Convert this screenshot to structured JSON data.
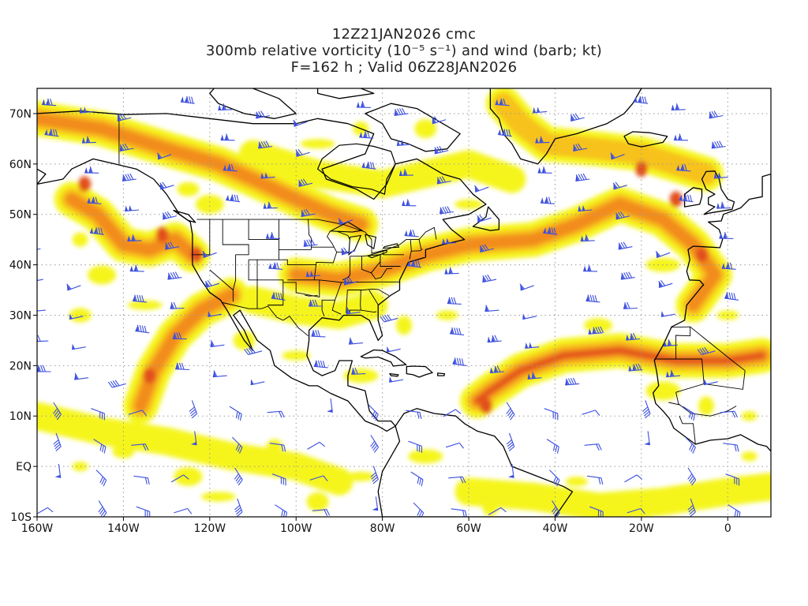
{
  "title": {
    "line1": "12Z21JAN2026 cmc",
    "line2": "300mb relative vorticity (10⁻⁵ s⁻¹) and wind (barb; kt)",
    "line3": "F=162 h ; Valid 06Z28JAN2026"
  },
  "map": {
    "projection": "cylindrical",
    "lon_range": [
      -160,
      10
    ],
    "lat_range": [
      -10,
      75
    ],
    "lat_ticks": [
      {
        "value": 70,
        "label": "70N"
      },
      {
        "value": 60,
        "label": "60N"
      },
      {
        "value": 50,
        "label": "50N"
      },
      {
        "value": 40,
        "label": "40N"
      },
      {
        "value": 30,
        "label": "30N"
      },
      {
        "value": 20,
        "label": "20N"
      },
      {
        "value": 10,
        "label": "10N"
      },
      {
        "value": 0,
        "label": "EQ"
      },
      {
        "value": -10,
        "label": "10S"
      }
    ],
    "lon_ticks": [
      {
        "value": -160,
        "label": "160W"
      },
      {
        "value": -140,
        "label": "140W"
      },
      {
        "value": -120,
        "label": "120W"
      },
      {
        "value": -100,
        "label": "100W"
      },
      {
        "value": -80,
        "label": "80W"
      },
      {
        "value": -60,
        "label": "60W"
      },
      {
        "value": -40,
        "label": "40W"
      },
      {
        "value": -20,
        "label": "20W"
      },
      {
        "value": 0,
        "label": "0"
      }
    ],
    "gridlines": "dotted",
    "colors": {
      "vort_low": "#f5f51e",
      "vort_mid": "#f7c21a",
      "vort_high": "#f28c1e",
      "vort_peak": "#e2501c",
      "coastline": "#000000",
      "barbs": "#3b4fe0",
      "grid": "#9a9a9a"
    }
  },
  "vorticity_bands": [
    {
      "name": "north-pacific-jet",
      "path": [
        [
          -160,
          69
        ],
        [
          -145,
          67
        ],
        [
          -130,
          63
        ],
        [
          -118,
          60
        ],
        [
          -110,
          57
        ],
        [
          -100,
          53
        ],
        [
          -92,
          50
        ],
        [
          -85,
          48
        ]
      ],
      "level": 3
    },
    {
      "name": "gulf-of-alaska-trough",
      "path": [
        [
          -152,
          53
        ],
        [
          -146,
          50
        ],
        [
          -140,
          44
        ],
        [
          -134,
          43
        ],
        [
          -128,
          45
        ],
        [
          -124,
          42
        ]
      ],
      "level": 3
    },
    {
      "name": "subtropical-jet-pacific",
      "path": [
        [
          -136,
          12
        ],
        [
          -133,
          19
        ],
        [
          -128,
          26
        ],
        [
          -122,
          31
        ],
        [
          -115,
          34
        ]
      ],
      "level": 3
    },
    {
      "name": "east-us-jet",
      "path": [
        [
          -100,
          38
        ],
        [
          -90,
          37
        ],
        [
          -80,
          39
        ],
        [
          -70,
          42
        ],
        [
          -60,
          44
        ],
        [
          -45,
          45
        ],
        [
          -35,
          48
        ],
        [
          -25,
          52
        ],
        [
          -15,
          49
        ],
        [
          -8,
          44
        ],
        [
          -3,
          38
        ],
        [
          -8,
          32
        ]
      ],
      "level": 3
    },
    {
      "name": "atlantic-subtropical-jet",
      "path": [
        [
          -58,
          13
        ],
        [
          -55,
          15
        ],
        [
          -48,
          19
        ],
        [
          -38,
          22
        ],
        [
          -25,
          23
        ],
        [
          -12,
          21
        ],
        [
          0,
          21
        ],
        [
          8,
          22
        ]
      ],
      "level": 4
    },
    {
      "name": "greenland-jet",
      "path": [
        [
          -52,
          72
        ],
        [
          -48,
          68
        ],
        [
          -42,
          64
        ],
        [
          -30,
          63
        ],
        [
          -20,
          62
        ],
        [
          -5,
          58
        ]
      ],
      "level": 2
    },
    {
      "name": "tropical-band-pacific",
      "path": [
        [
          -160,
          10
        ],
        [
          -145,
          7
        ],
        [
          -130,
          5
        ],
        [
          -115,
          2
        ],
        [
          -100,
          0
        ],
        [
          -90,
          -3
        ]
      ],
      "level": 1
    },
    {
      "name": "tropical-band-atlantic",
      "path": [
        [
          -60,
          -5
        ],
        [
          -45,
          -6
        ],
        [
          -30,
          -8
        ],
        [
          -15,
          -7
        ],
        [
          0,
          -5
        ],
        [
          10,
          -4
        ]
      ],
      "level": 1
    },
    {
      "name": "canada-broad",
      "path": [
        [
          -110,
          62
        ],
        [
          -95,
          58
        ],
        [
          -80,
          56
        ],
        [
          -70,
          58
        ],
        [
          -60,
          60
        ],
        [
          -50,
          57
        ]
      ],
      "level": 1
    },
    {
      "name": "southern-us",
      "path": [
        [
          -110,
          33
        ],
        [
          -100,
          31
        ],
        [
          -90,
          30
        ],
        [
          -82,
          32
        ]
      ],
      "level": 1
    }
  ]
}
